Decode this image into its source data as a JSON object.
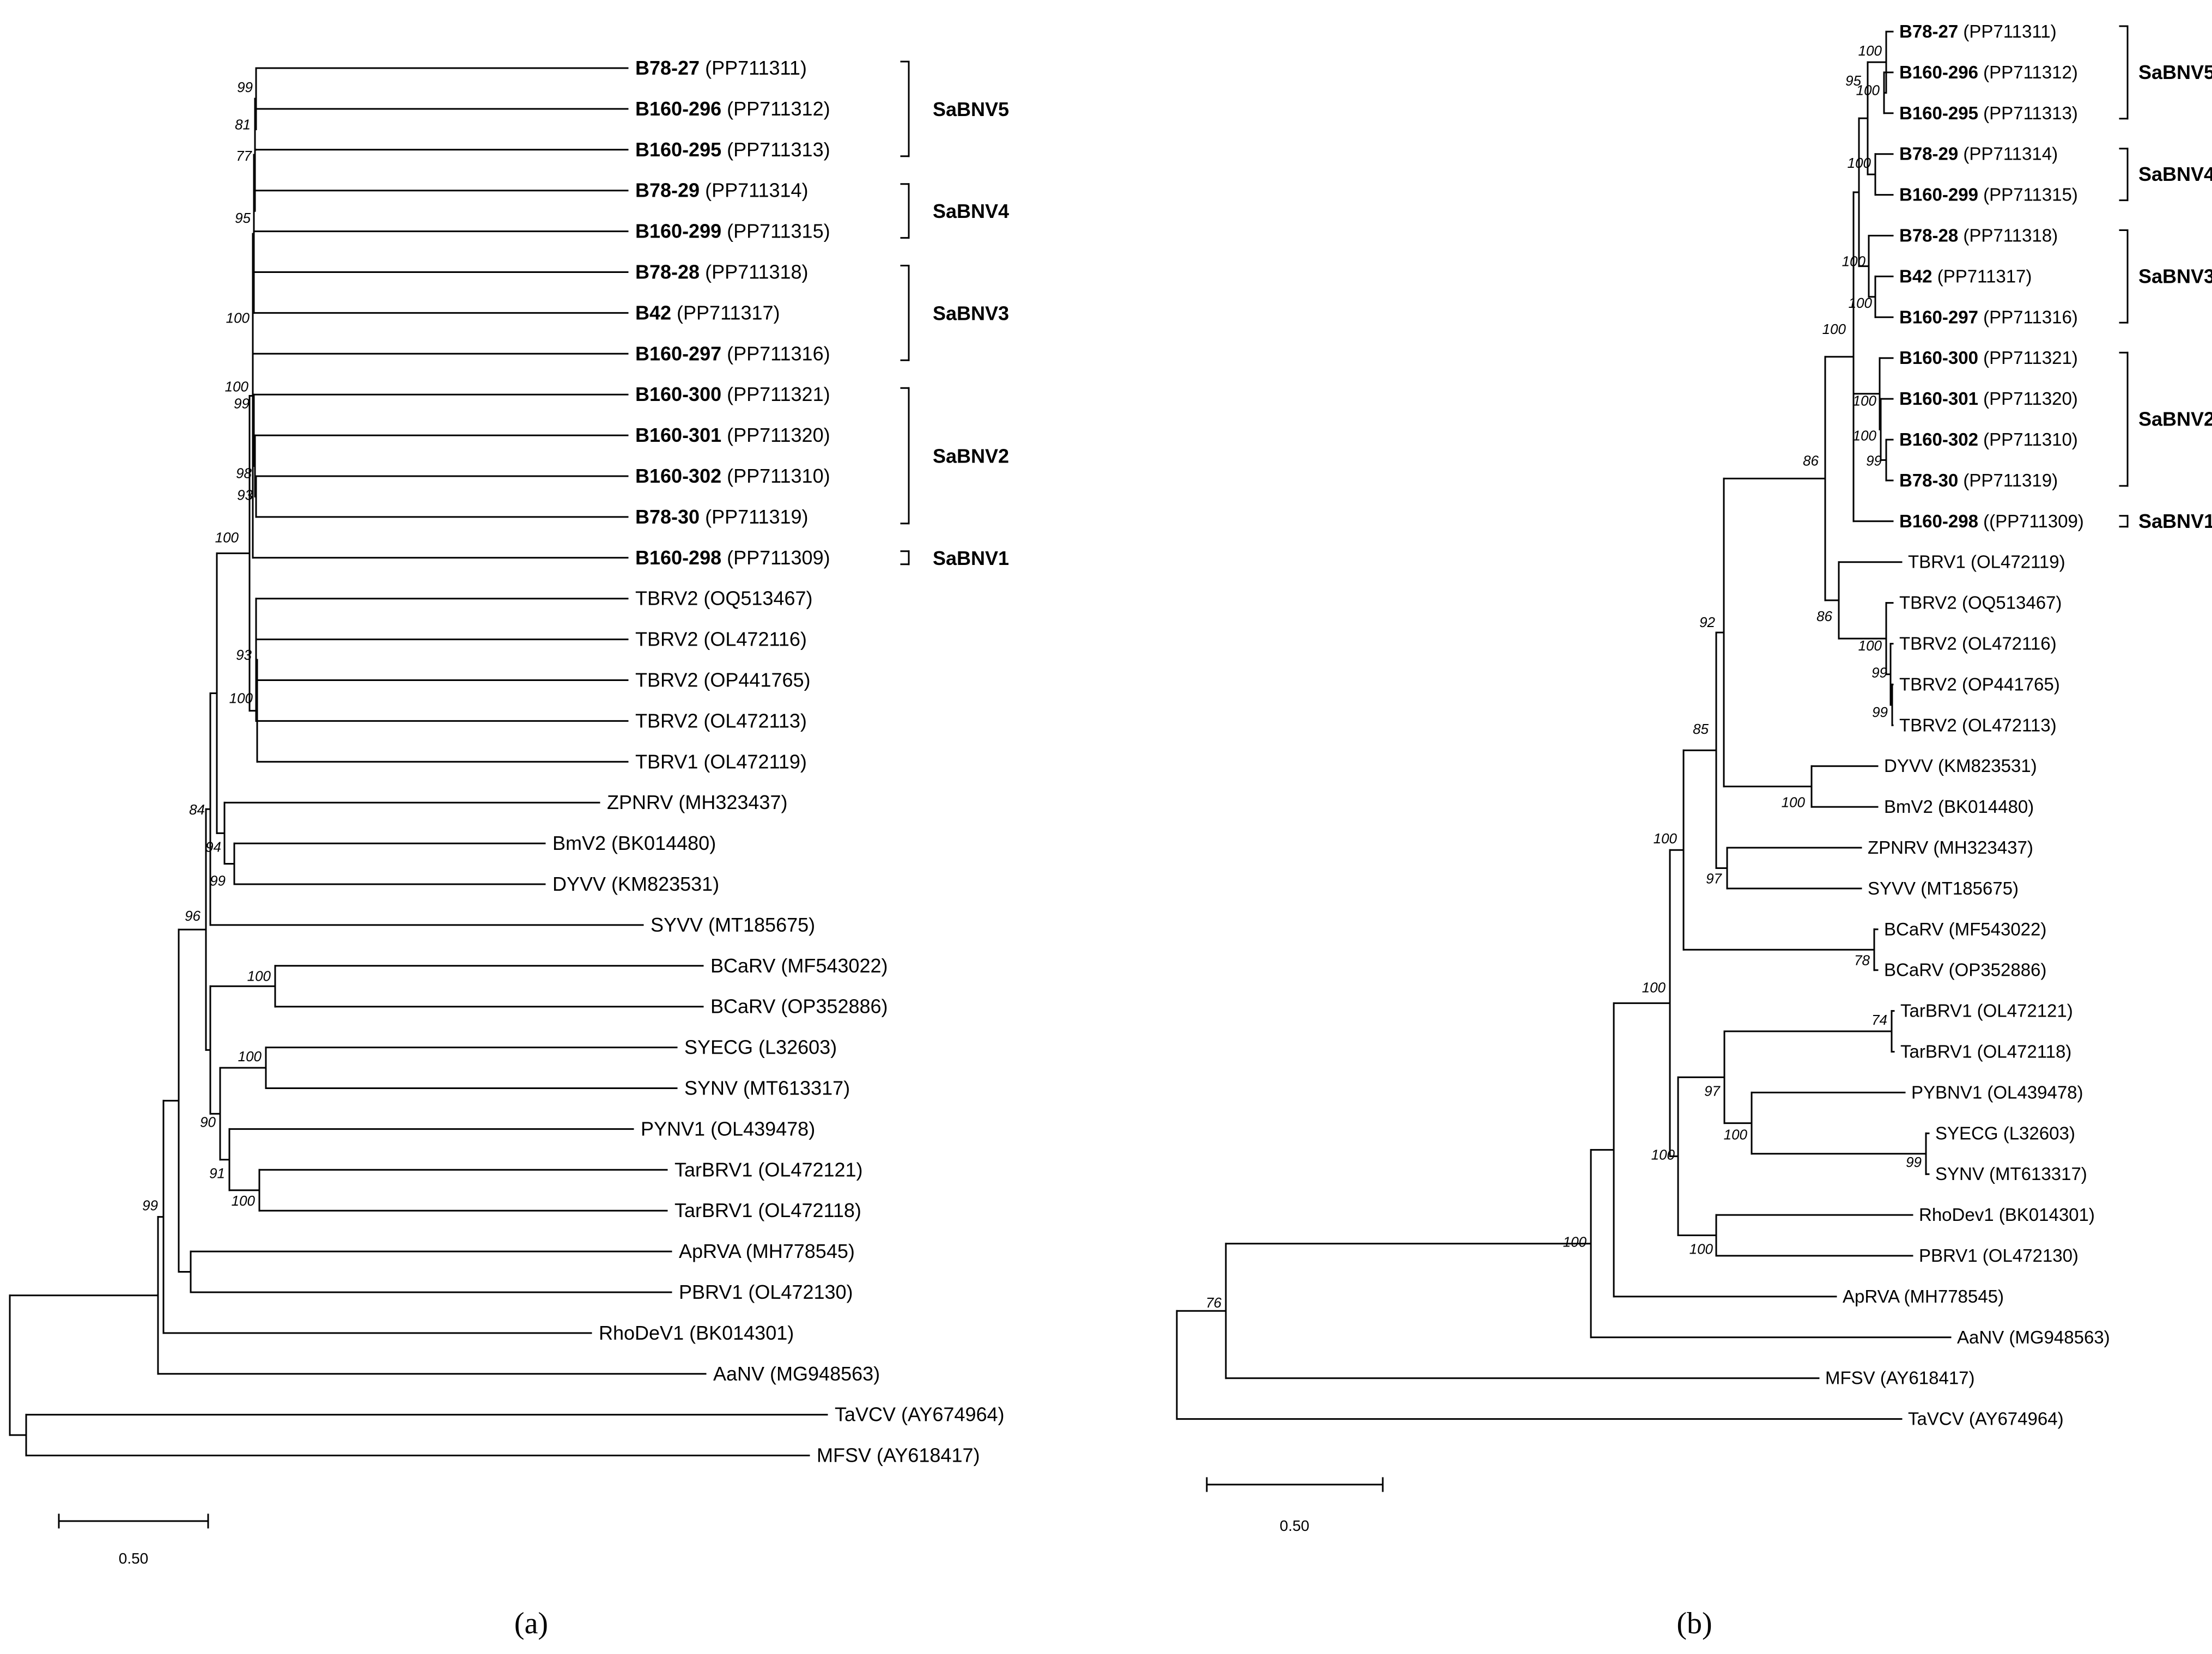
{
  "panels": {
    "a": {
      "label": "(a)",
      "scale_label": "0.50",
      "clades": [
        "SaBNV5",
        "SaBNV4",
        "SaBNV3",
        "SaBNV2",
        "SaBNV1"
      ],
      "tips": [
        {
          "name": "B78-27",
          "acc": "(PP711311)",
          "bold": true
        },
        {
          "name": "B160-296",
          "acc": "(PP711312)",
          "bold": true
        },
        {
          "name": "B160-295",
          "acc": "(PP711313)",
          "bold": true
        },
        {
          "name": "B78-29",
          "acc": "(PP711314)",
          "bold": true
        },
        {
          "name": "B160-299",
          "acc": "(PP711315)",
          "bold": true
        },
        {
          "name": "B78-28",
          "acc": "(PP711318)",
          "bold": true
        },
        {
          "name": "B42",
          "acc": "(PP711317)",
          "bold": true
        },
        {
          "name": "B160-297",
          "acc": "(PP711316)",
          "bold": true
        },
        {
          "name": "B160-300",
          "acc": "(PP711321)",
          "bold": true
        },
        {
          "name": "B160-301",
          "acc": "(PP711320)",
          "bold": true
        },
        {
          "name": "B160-302",
          "acc": "(PP711310)",
          "bold": true
        },
        {
          "name": "B78-30",
          "acc": "(PP711319)",
          "bold": true
        },
        {
          "name": "B160-298",
          "acc": "(PP711309)",
          "bold": true
        },
        {
          "name": "TBRV2",
          "acc": "(OQ513467)",
          "bold": false
        },
        {
          "name": "TBRV2",
          "acc": "(OL472116)",
          "bold": false
        },
        {
          "name": "TBRV2",
          "acc": "(OP441765)",
          "bold": false
        },
        {
          "name": "TBRV2",
          "acc": "(OL472113)",
          "bold": false
        },
        {
          "name": "TBRV1",
          "acc": "(OL472119)",
          "bold": false
        },
        {
          "name": "ZPNRV",
          "acc": "(MH323437)",
          "bold": false
        },
        {
          "name": "BmV2",
          "acc": "(BK014480)",
          "bold": false
        },
        {
          "name": "DYVV",
          "acc": "(KM823531)",
          "bold": false
        },
        {
          "name": "SYVV",
          "acc": "(MT185675)",
          "bold": false
        },
        {
          "name": "BCaRV",
          "acc": "(MF543022)",
          "bold": false
        },
        {
          "name": "BCaRV",
          "acc": "(OP352886)",
          "bold": false
        },
        {
          "name": "SYECG",
          "acc": "(L32603)",
          "bold": false
        },
        {
          "name": "SYNV",
          "acc": "(MT613317)",
          "bold": false
        },
        {
          "name": "PYNV1",
          "acc": "(OL439478)",
          "bold": false
        },
        {
          "name": "TarBRV1",
          "acc": "(OL472121)",
          "bold": false
        },
        {
          "name": "TarBRV1",
          "acc": "(OL472118)",
          "bold": false
        },
        {
          "name": "ApRVA",
          "acc": "(MH778545)",
          "bold": false
        },
        {
          "name": "PBRV1",
          "acc": "(OL472130)",
          "bold": false
        },
        {
          "name": "RhoDeV1",
          "acc": "(BK014301)",
          "bold": false
        },
        {
          "name": "AaNV",
          "acc": "(MG948563)",
          "bold": false
        },
        {
          "name": "TaVCV",
          "acc": "(AY674964)",
          "bold": false
        },
        {
          "name": "MFSV",
          "acc": "(AY618417)",
          "bold": false
        }
      ],
      "bootstraps": [
        "99",
        "81",
        "77",
        "95",
        "100",
        "99",
        "98",
        "93",
        "100",
        "100",
        "93",
        "84",
        "94",
        "99",
        "96",
        "100",
        "100",
        "90",
        "91",
        "100",
        "99"
      ]
    },
    "b": {
      "label": "(b)",
      "scale_label": "0.50",
      "clades": [
        "SaBNV5",
        "SaBNV4",
        "SaBNV3",
        "SaBNV2",
        "SaBNV1"
      ],
      "tips": [
        {
          "name": "B78-27",
          "acc": "(PP711311)",
          "bold": true
        },
        {
          "name": "B160-296",
          "acc": "(PP711312)",
          "bold": true
        },
        {
          "name": "B160-295",
          "acc": "(PP711313)",
          "bold": true
        },
        {
          "name": "B78-29",
          "acc": "(PP711314)",
          "bold": true
        },
        {
          "name": "B160-299",
          "acc": "(PP711315)",
          "bold": true
        },
        {
          "name": "B78-28",
          "acc": "(PP711318)",
          "bold": true
        },
        {
          "name": "B42",
          "acc": "(PP711317)",
          "bold": true
        },
        {
          "name": "B160-297",
          "acc": "(PP711316)",
          "bold": true
        },
        {
          "name": "B160-300",
          "acc": "(PP711321)",
          "bold": true
        },
        {
          "name": "B160-301",
          "acc": "(PP711320)",
          "bold": true
        },
        {
          "name": "B160-302",
          "acc": "(PP711310)",
          "bold": true
        },
        {
          "name": "B78-30",
          "acc": "(PP711319)",
          "bold": true
        },
        {
          "name": "B160-298",
          "acc": "((PP711309)",
          "bold": true
        },
        {
          "name": "TBRV1",
          "acc": "(OL472119)",
          "bold": false
        },
        {
          "name": "TBRV2",
          "acc": "(OQ513467)",
          "bold": false
        },
        {
          "name": "TBRV2",
          "acc": "(OL472116)",
          "bold": false
        },
        {
          "name": "TBRV2",
          "acc": "(OP441765)",
          "bold": false
        },
        {
          "name": "TBRV2",
          "acc": "(OL472113)",
          "bold": false
        },
        {
          "name": "DYVV",
          "acc": "(KM823531)",
          "bold": false
        },
        {
          "name": "BmV2",
          "acc": "(BK014480)",
          "bold": false
        },
        {
          "name": "ZPNRV",
          "acc": "(MH323437)",
          "bold": false
        },
        {
          "name": "SYVV",
          "acc": "(MT185675)",
          "bold": false
        },
        {
          "name": "BCaRV",
          "acc": "(MF543022)",
          "bold": false
        },
        {
          "name": "BCaRV",
          "acc": "(OP352886)",
          "bold": false
        },
        {
          "name": "TarBRV1",
          "acc": "(OL472121)",
          "bold": false
        },
        {
          "name": "TarBRV1",
          "acc": "(OL472118)",
          "bold": false
        },
        {
          "name": "PYBNV1",
          "acc": "(OL439478)",
          "bold": false
        },
        {
          "name": "SYECG",
          "acc": "(L32603)",
          "bold": false
        },
        {
          "name": "SYNV",
          "acc": "(MT613317)",
          "bold": false
        },
        {
          "name": "RhoDev1",
          "acc": "(BK014301)",
          "bold": false
        },
        {
          "name": "PBRV1",
          "acc": "(OL472130)",
          "bold": false
        },
        {
          "name": "ApRVA",
          "acc": "(MH778545)",
          "bold": false
        },
        {
          "name": "AaNV",
          "acc": "(MG948563)",
          "bold": false
        },
        {
          "name": "MFSV",
          "acc": "(AY618417)",
          "bold": false
        },
        {
          "name": "TaVCV",
          "acc": "(AY674964)",
          "bold": false
        }
      ],
      "bootstraps": [
        "100",
        "100",
        "95",
        "100",
        "100",
        "100",
        "100",
        "100",
        "99",
        "100",
        "100",
        "86",
        "100",
        "99",
        "99",
        "92",
        "100",
        "85",
        "97",
        "78",
        "100",
        "74",
        "100",
        "100",
        "97",
        "100",
        "99",
        "100",
        "76",
        "100"
      ]
    }
  }
}
